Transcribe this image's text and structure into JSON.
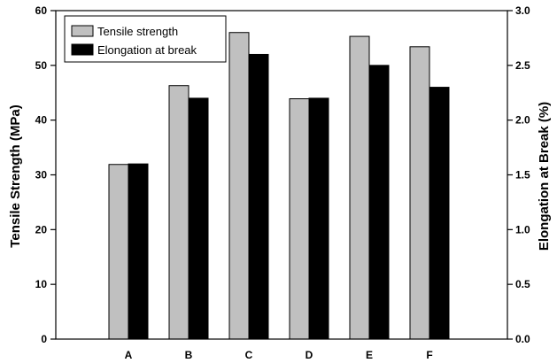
{
  "chart_data": {
    "type": "bar",
    "categories": [
      "A",
      "B",
      "C",
      "D",
      "E",
      "F"
    ],
    "series": [
      {
        "name": "Tensile strength",
        "axis": "left",
        "color": "#c0c0c0",
        "values": [
          31.9,
          46.3,
          56.0,
          43.9,
          55.3,
          53.4
        ]
      },
      {
        "name": "Elongation at break",
        "axis": "right",
        "color": "#000000",
        "values": [
          1.6,
          2.2,
          2.6,
          2.2,
          2.5,
          2.3
        ]
      }
    ],
    "ylabel": "Tensile Strength (MPa)",
    "ylabel_right": "Elongation at Break (%)",
    "ylim": [
      0,
      60
    ],
    "ylim_right": [
      0,
      3.0
    ],
    "yticks": [
      "0",
      "10",
      "20",
      "30",
      "40",
      "50",
      "60"
    ],
    "yticks_right": [
      "0.0",
      "0.5",
      "1.0",
      "1.5",
      "2.0",
      "2.5",
      "3.0"
    ],
    "grid": false,
    "legend_position": "top-left"
  }
}
